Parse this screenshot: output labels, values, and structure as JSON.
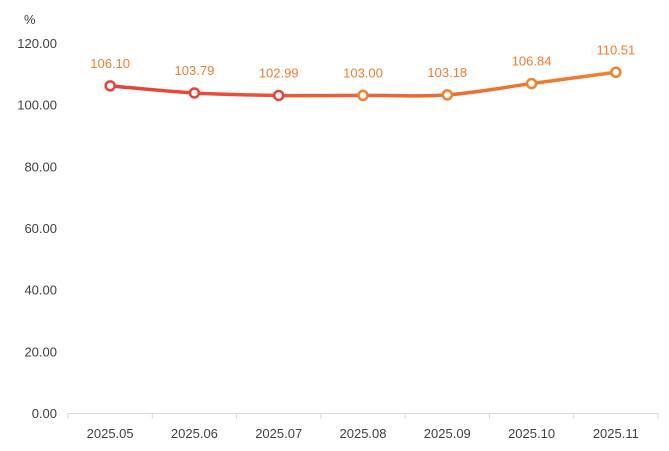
{
  "chart_data": {
    "type": "line",
    "unit_label": "%",
    "categories": [
      "2025.05",
      "2025.06",
      "2025.07",
      "2025.08",
      "2025.09",
      "2025.10",
      "2025.11"
    ],
    "series": [
      {
        "values": [
          106.1,
          103.79,
          102.99,
          103.0,
          103.18,
          106.84,
          110.51
        ]
      }
    ],
    "data_labels": [
      "106.10",
      "103.79",
      "102.99",
      "103.00",
      "103.18",
      "106.84",
      "110.51"
    ],
    "ylim": [
      0,
      120
    ],
    "yticks": [
      0,
      20,
      40,
      60,
      80,
      100,
      120
    ],
    "ytick_labels": [
      "0.00",
      "20.00",
      "40.00",
      "60.00",
      "80.00",
      "100.00",
      "120.00"
    ],
    "grid": false,
    "legend": "none",
    "colors": {
      "line_start": "#e8403a",
      "line_end": "#f0822d",
      "label": "#ed7d31",
      "axis": "#d9d9d9",
      "marker_fill": "#ffffff"
    }
  }
}
